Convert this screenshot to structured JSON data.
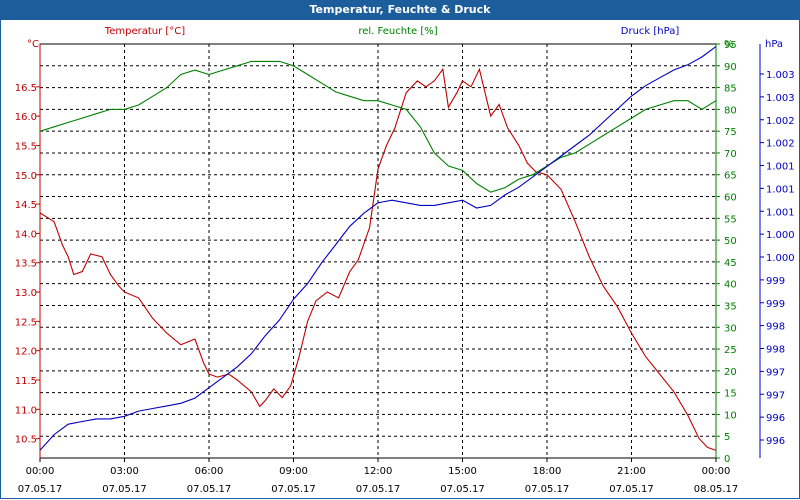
{
  "window": {
    "title": "Temperatur, Feuchte & Druck"
  },
  "chart_data": {
    "type": "line",
    "title": "Temperatur, Feuchte & Druck",
    "x_ticks": [
      {
        "time": "00:00",
        "date": "07.05.17"
      },
      {
        "time": "03:00",
        "date": "07.05.17"
      },
      {
        "time": "06:00",
        "date": "07.05.17"
      },
      {
        "time": "09:00",
        "date": "07.05.17"
      },
      {
        "time": "12:00",
        "date": "07.05.17"
      },
      {
        "time": "15:00",
        "date": "07.05.17"
      },
      {
        "time": "18:00",
        "date": "07.05.17"
      },
      {
        "time": "21:00",
        "date": "07.05.17"
      },
      {
        "time": "00:00",
        "date": "08.05.17"
      }
    ],
    "x_range_hours": [
      0,
      24
    ],
    "grid": true,
    "axes": {
      "left": {
        "unit": "°C",
        "label": "Temperatur [°C]",
        "range": [
          10.17,
          17.23
        ],
        "ticks": [
          "10.5",
          "11.0",
          "11.5",
          "12.0",
          "12.5",
          "13.0",
          "13.5",
          "14.0",
          "14.5",
          "15.0",
          "15.5",
          "16.0",
          "16.5"
        ],
        "tick_values": [
          10.5,
          11.0,
          11.5,
          12.0,
          12.5,
          13.0,
          13.5,
          14.0,
          14.5,
          15.0,
          15.5,
          16.0,
          16.5
        ],
        "color": "#c00000"
      },
      "right1": {
        "unit": "%",
        "label": "rel. Feuchte [%]",
        "range": [
          0,
          95
        ],
        "ticks": [
          "0",
          "5",
          "10",
          "15",
          "20",
          "25",
          "30",
          "35",
          "40",
          "45",
          "50",
          "55",
          "60",
          "65",
          "70",
          "75",
          "80",
          "85",
          "90",
          "95"
        ],
        "tick_values": [
          0,
          5,
          10,
          15,
          20,
          25,
          30,
          35,
          40,
          45,
          50,
          55,
          60,
          65,
          70,
          75,
          80,
          85,
          90,
          95
        ],
        "color": "#008000"
      },
      "right2": {
        "unit": "hPa",
        "label": "Druck [hPa]",
        "range": [
          995.75,
          1003.7
        ],
        "ticks": [
          "996",
          "996",
          "997",
          "997",
          "998",
          "998",
          "999",
          "999",
          "1.000",
          "1.000",
          "1.001",
          "1.001",
          "1.001",
          "1.002",
          "1.002",
          "1.003",
          "1.003"
        ],
        "tick_values": [
          996.0,
          996.5,
          997.0,
          997.5,
          998.0,
          998.5,
          999.0,
          999.5,
          1000.0,
          1000.5,
          1001.0,
          1001.5,
          1001.0,
          1001.5,
          1002.0,
          1002.5,
          1003.0
        ],
        "color": "#0000c0"
      }
    },
    "series": [
      {
        "name": "Temperatur [°C]",
        "axis": "left",
        "color": "#c00000",
        "x": [
          0,
          0.5,
          0.8,
          1.0,
          1.2,
          1.5,
          1.8,
          2.2,
          2.5,
          2.8,
          3.0,
          3.5,
          4.0,
          4.5,
          5.0,
          5.5,
          5.8,
          6.0,
          6.3,
          6.7,
          7.0,
          7.5,
          7.8,
          8.0,
          8.3,
          8.6,
          8.9,
          9.2,
          9.5,
          9.8,
          10.2,
          10.6,
          11.0,
          11.3,
          11.7,
          12.0,
          12.3,
          12.6,
          13.0,
          13.4,
          13.7,
          14.0,
          14.3,
          14.5,
          14.8,
          15.0,
          15.3,
          15.6,
          16.0,
          16.3,
          16.6,
          17.0,
          17.3,
          17.6,
          18.0,
          18.5,
          19.0,
          19.5,
          20.0,
          20.5,
          21.0,
          21.5,
          22.0,
          22.5,
          23.0,
          23.4,
          23.7,
          24.0
        ],
        "values": [
          14.35,
          14.2,
          13.8,
          13.6,
          13.3,
          13.35,
          13.65,
          13.6,
          13.3,
          13.1,
          13.0,
          12.9,
          12.55,
          12.3,
          12.1,
          12.2,
          11.8,
          11.6,
          11.55,
          11.6,
          11.5,
          11.3,
          11.05,
          11.15,
          11.35,
          11.2,
          11.4,
          11.9,
          12.5,
          12.85,
          13.0,
          12.9,
          13.35,
          13.55,
          14.1,
          15.1,
          15.5,
          15.8,
          16.4,
          16.6,
          16.5,
          16.6,
          16.8,
          16.15,
          16.4,
          16.6,
          16.5,
          16.8,
          16.0,
          16.2,
          15.8,
          15.5,
          15.2,
          15.05,
          15.0,
          14.75,
          14.2,
          13.6,
          13.1,
          12.75,
          12.3,
          11.9,
          11.6,
          11.3,
          10.9,
          10.5,
          10.35,
          10.3
        ]
      },
      {
        "name": "rel. Feuchte [%]",
        "axis": "right1",
        "color": "#008000",
        "x": [
          0,
          0.5,
          1.0,
          1.5,
          2.0,
          2.5,
          3.0,
          3.5,
          4.0,
          4.5,
          5.0,
          5.5,
          6.0,
          6.5,
          7.0,
          7.5,
          8.0,
          8.5,
          9.0,
          9.5,
          10.0,
          10.5,
          11.0,
          11.5,
          12.0,
          12.5,
          13.0,
          13.5,
          14.0,
          14.5,
          15.0,
          15.5,
          16.0,
          16.5,
          17.0,
          17.5,
          18.0,
          18.5,
          19.0,
          19.5,
          20.0,
          20.5,
          21.0,
          21.5,
          22.0,
          22.5,
          23.0,
          23.5,
          24.0
        ],
        "values": [
          75,
          76,
          77,
          78,
          79,
          80,
          80,
          81,
          83,
          85,
          88,
          89,
          88,
          89,
          90,
          91,
          91,
          91,
          90,
          88,
          86,
          84,
          83,
          82,
          82,
          81,
          80,
          76,
          70,
          67,
          66,
          63,
          61,
          62,
          64,
          65,
          67,
          69,
          70,
          72,
          74,
          76,
          78,
          80,
          81,
          82,
          82,
          80,
          82
        ]
      },
      {
        "name": "Druck [hPa]",
        "axis": "right2",
        "color": "#0000c0",
        "x": [
          0,
          0.5,
          1.0,
          1.5,
          2.0,
          2.5,
          3.0,
          3.5,
          4.0,
          4.5,
          5.0,
          5.5,
          6.0,
          6.5,
          7.0,
          7.5,
          8.0,
          8.5,
          9.0,
          9.5,
          10.0,
          10.5,
          11.0,
          11.5,
          12.0,
          12.5,
          13.0,
          13.5,
          14.0,
          14.5,
          15.0,
          15.5,
          16.0,
          16.5,
          17.0,
          17.5,
          18.0,
          18.5,
          19.0,
          19.5,
          20.0,
          20.5,
          21.0,
          21.5,
          22.0,
          22.5,
          23.0,
          23.5,
          24.0
        ],
        "values": [
          995.9,
          996.2,
          996.4,
          996.45,
          996.5,
          996.5,
          996.55,
          996.65,
          996.7,
          996.75,
          996.8,
          996.9,
          997.1,
          997.3,
          997.5,
          997.75,
          998.1,
          998.4,
          998.8,
          999.1,
          999.5,
          999.85,
          1000.2,
          1000.45,
          1000.65,
          1000.7,
          1000.65,
          1000.6,
          1000.6,
          1000.65,
          1000.7,
          1000.55,
          1000.6,
          1000.8,
          1000.95,
          1001.15,
          1001.35,
          1001.55,
          1001.75,
          1001.95,
          1002.2,
          1002.45,
          1002.7,
          1002.9,
          1003.05,
          1003.2,
          1003.3,
          1003.45,
          1003.65
        ]
      }
    ]
  }
}
